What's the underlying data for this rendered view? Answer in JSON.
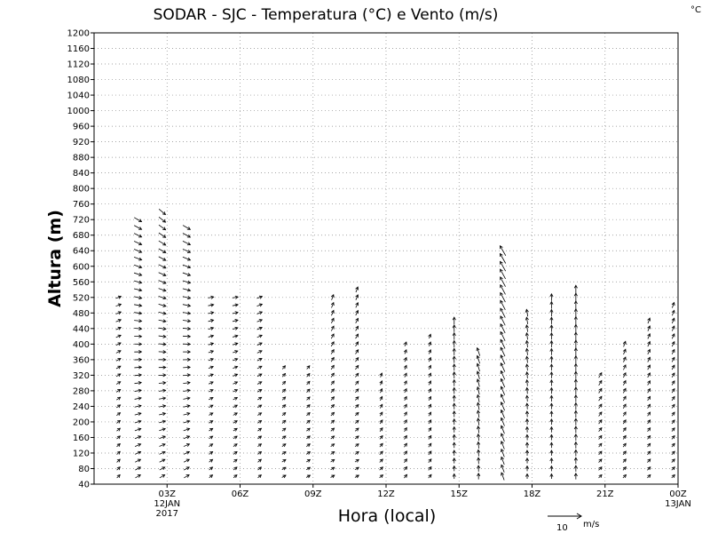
{
  "chart_data": {
    "type": "vector-field",
    "title": "SODAR - SJC - Temperatura (°C) e Vento (m/s)",
    "corner_unit": "°C",
    "xlabel": "Hora (local)",
    "ylabel": "Altura (m)",
    "ylim": [
      40,
      1200
    ],
    "y_ticks": [
      40,
      80,
      120,
      160,
      200,
      240,
      280,
      320,
      360,
      400,
      440,
      480,
      520,
      560,
      600,
      640,
      680,
      720,
      760,
      800,
      840,
      880,
      920,
      960,
      1000,
      1040,
      1080,
      1120,
      1160,
      1200
    ],
    "xlim_hours_since_00Z_12JAN2017": [
      0,
      24
    ],
    "x_ticks": [
      {
        "hour": 3,
        "label": "03Z",
        "sub1": "12JAN",
        "sub2": "2017"
      },
      {
        "hour": 6,
        "label": "06Z",
        "sub1": "",
        "sub2": ""
      },
      {
        "hour": 9,
        "label": "09Z",
        "sub1": "",
        "sub2": ""
      },
      {
        "hour": 12,
        "label": "12Z",
        "sub1": "",
        "sub2": ""
      },
      {
        "hour": 15,
        "label": "15Z",
        "sub1": "",
        "sub2": ""
      },
      {
        "hour": 18,
        "label": "18Z",
        "sub1": "",
        "sub2": ""
      },
      {
        "hour": 21,
        "label": "21Z",
        "sub1": "",
        "sub2": ""
      },
      {
        "hour": 24,
        "label": "00Z",
        "sub1": "13JAN",
        "sub2": ""
      }
    ],
    "grid": true,
    "reference_vector": {
      "value": "10",
      "unit": "m/s"
    },
    "wind_profiles": [
      {
        "hour": 1.0,
        "top": 520,
        "dir_low": 225,
        "dir_high": 250,
        "speed": 2
      },
      {
        "hour": 1.8,
        "top": 720,
        "dir_low": 240,
        "dir_high": 300,
        "speed": 3
      },
      {
        "hour": 2.8,
        "top": 740,
        "dir_low": 240,
        "dir_high": 310,
        "speed": 3
      },
      {
        "hour": 3.8,
        "top": 700,
        "dir_low": 240,
        "dir_high": 300,
        "speed": 3
      },
      {
        "hour": 4.8,
        "top": 520,
        "dir_low": 230,
        "dir_high": 260,
        "speed": 2
      },
      {
        "hour": 5.8,
        "top": 520,
        "dir_low": 230,
        "dir_high": 260,
        "speed": 2
      },
      {
        "hour": 6.8,
        "top": 520,
        "dir_low": 230,
        "dir_high": 250,
        "speed": 2
      },
      {
        "hour": 7.8,
        "top": 340,
        "dir_low": 240,
        "dir_high": 220,
        "speed": 1.5
      },
      {
        "hour": 8.8,
        "top": 340,
        "dir_low": 240,
        "dir_high": 220,
        "speed": 1.5
      },
      {
        "hour": 9.8,
        "top": 520,
        "dir_low": 240,
        "dir_high": 200,
        "speed": 2
      },
      {
        "hour": 10.8,
        "top": 550,
        "dir_low": 240,
        "dir_high": 200,
        "speed": 2
      },
      {
        "hour": 11.8,
        "top": 320,
        "dir_low": 230,
        "dir_high": 200,
        "speed": 1.5
      },
      {
        "hour": 12.8,
        "top": 400,
        "dir_low": 220,
        "dir_high": 200,
        "speed": 1.5
      },
      {
        "hour": 13.8,
        "top": 420,
        "dir_low": 220,
        "dir_high": 200,
        "speed": 1.5
      },
      {
        "hour": 14.8,
        "top": 460,
        "dir_low": 180,
        "dir_high": 180,
        "speed": 2.5
      },
      {
        "hour": 15.8,
        "top": 390,
        "dir_low": 180,
        "dir_high": 160,
        "speed": 3
      },
      {
        "hour": 16.8,
        "top": 640,
        "dir_low": 160,
        "dir_high": 150,
        "speed": 4
      },
      {
        "hour": 17.8,
        "top": 480,
        "dir_low": 180,
        "dir_high": 170,
        "speed": 2.5
      },
      {
        "hour": 18.8,
        "top": 530,
        "dir_low": 180,
        "dir_high": 180,
        "speed": 2.5
      },
      {
        "hour": 19.8,
        "top": 550,
        "dir_low": 180,
        "dir_high": 180,
        "speed": 3
      },
      {
        "hour": 20.8,
        "top": 320,
        "dir_low": 225,
        "dir_high": 210,
        "speed": 2
      },
      {
        "hour": 21.8,
        "top": 400,
        "dir_low": 225,
        "dir_high": 200,
        "speed": 2
      },
      {
        "hour": 22.8,
        "top": 460,
        "dir_low": 225,
        "dir_high": 200,
        "speed": 2
      },
      {
        "hour": 23.8,
        "top": 500,
        "dir_low": 225,
        "dir_high": 200,
        "speed": 2
      }
    ]
  }
}
